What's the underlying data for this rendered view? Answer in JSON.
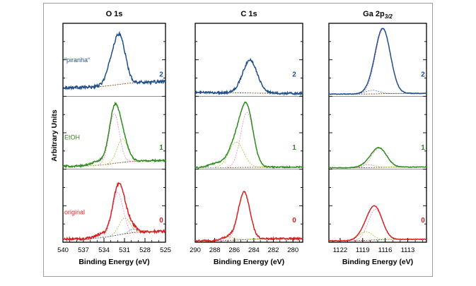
{
  "figure": {
    "ylabel": "Arbitrary Units",
    "xlabel": "Binding Energy (eV)",
    "colors": {
      "frame": "#9e9e9e",
      "axes": "#000000",
      "piranha": "#1f4e8c",
      "etoh": "#2e8b1e",
      "original": "#d82020",
      "background_line": "#8b4513"
    }
  },
  "chart_data": [
    {
      "type": "line",
      "title": "O 1s",
      "xlabel": "Binding Energy (eV)",
      "ylabel": "Arbitrary Units",
      "xlim": [
        540,
        525
      ],
      "ylim": [
        0,
        3
      ],
      "xticks": [
        540,
        537,
        534,
        531,
        528,
        525
      ],
      "xtick_labels": [
        "540",
        "537",
        "534",
        "531",
        "528",
        "525"
      ],
      "series": [
        {
          "name": "piranha",
          "index": "2",
          "label": "“piranha“",
          "color": "#1f4e8c",
          "offset": 2,
          "noise": 0.02,
          "baseline": {
            "left": 0.2,
            "right": 0.12,
            "step_center": 532.0,
            "step_width": 1.6
          },
          "peaks": [
            {
              "center": 531.6,
              "height": 0.58,
              "width": 0.8
            },
            {
              "center": 532.8,
              "height": 0.28,
              "width": 0.8
            }
          ],
          "components": [],
          "bg_color": "#8b4513"
        },
        {
          "name": "EtOH",
          "index": "1",
          "label": "EtOH",
          "color": "#2e8b1e",
          "offset": 1,
          "noise": 0.012,
          "baseline": {
            "left": 0.12,
            "right": 0.04,
            "step_center": 532.5,
            "step_width": 1.6
          },
          "peaks": [
            {
              "center": 532.5,
              "height": 0.68,
              "width": 0.75
            },
            {
              "center": 531.3,
              "height": 0.32,
              "width": 0.8
            },
            {
              "center": 534.5,
              "height": 0.06,
              "width": 1.2
            }
          ],
          "components": [
            {
              "center": 532.5,
              "height": 0.68,
              "width": 0.75,
              "color": "#e98cc8"
            },
            {
              "center": 531.3,
              "height": 0.32,
              "width": 0.8,
              "color": "#9acd32"
            }
          ],
          "bg_color": "#8b4513"
        },
        {
          "name": "original",
          "index": "0",
          "label": "original",
          "color": "#d82020",
          "offset": 0,
          "noise": 0.018,
          "baseline": {
            "left": 0.15,
            "right": 0.04,
            "step_center": 532.2,
            "step_width": 1.6
          },
          "peaks": [
            {
              "center": 532.0,
              "height": 0.58,
              "width": 0.8
            },
            {
              "center": 531.0,
              "height": 0.22,
              "width": 0.8
            },
            {
              "center": 534.4,
              "height": 0.05,
              "width": 1.0
            },
            {
              "center": 529.7,
              "height": 0.05,
              "width": 0.6
            }
          ],
          "components": [
            {
              "center": 532.0,
              "height": 0.58,
              "width": 0.8,
              "color": "#e98cc8"
            },
            {
              "center": 531.0,
              "height": 0.22,
              "width": 0.8,
              "color": "#9acd32"
            },
            {
              "center": 529.7,
              "height": 0.05,
              "width": 0.6,
              "color": "#4f7bd8"
            }
          ],
          "bg_color": "#8b4513"
        }
      ]
    },
    {
      "type": "line",
      "title": "C 1s",
      "xlabel": "Binding Energy (eV)",
      "ylabel": "",
      "xlim": [
        290,
        279
      ],
      "ylim": [
        0,
        3
      ],
      "xticks": [
        290,
        288,
        286,
        284,
        282,
        280
      ],
      "xtick_labels": [
        "290",
        "288",
        "286",
        "284",
        "282",
        "280"
      ],
      "series": [
        {
          "name": "piranha",
          "index": "2",
          "color": "#1f4e8c",
          "offset": 2,
          "noise": 0.015,
          "baseline": {
            "left": 0.04,
            "right": 0.05,
            "step_center": 284.5,
            "step_width": 1.0
          },
          "peaks": [
            {
              "center": 284.4,
              "height": 0.45,
              "width": 0.75
            }
          ],
          "components": [],
          "bg_color": "#8b4513"
        },
        {
          "name": "EtOH",
          "index": "1",
          "color": "#2e8b1e",
          "offset": 1,
          "noise": 0.01,
          "baseline": {
            "left": 0.03,
            "right": 0.02,
            "step_center": 285.0,
            "step_width": 1.2
          },
          "peaks": [
            {
              "center": 284.7,
              "height": 0.75,
              "width": 0.65
            },
            {
              "center": 285.8,
              "height": 0.35,
              "width": 0.75
            },
            {
              "center": 287.8,
              "height": 0.06,
              "width": 0.8
            }
          ],
          "components": [
            {
              "center": 284.7,
              "height": 0.75,
              "width": 0.65,
              "color": "#e98cc8"
            },
            {
              "center": 285.8,
              "height": 0.35,
              "width": 0.75,
              "color": "#9acd32"
            }
          ],
          "bg_color": "#8b4513"
        },
        {
          "name": "original",
          "index": "0",
          "color": "#d82020",
          "offset": 0,
          "noise": 0.012,
          "baseline": {
            "left": 0.05,
            "right": 0.02,
            "step_center": 285.0,
            "step_width": 1.0
          },
          "peaks": [
            {
              "center": 285.0,
              "height": 0.65,
              "width": 0.6
            },
            {
              "center": 286.6,
              "height": 0.05,
              "width": 0.6
            }
          ],
          "components": [
            {
              "center": 285.0,
              "height": 0.65,
              "width": 0.6,
              "color": "#e98cc8"
            },
            {
              "center": 286.6,
              "height": 0.05,
              "width": 0.6,
              "color": "#9acd32"
            }
          ],
          "bg_color": "#8b4513"
        }
      ]
    },
    {
      "type": "line",
      "title": "Ga 2p",
      "title_subscript": "3/2",
      "xlabel": "Binding Energy (eV)",
      "ylabel": "",
      "xlim": [
        1123.5,
        1110.5
      ],
      "ylim": [
        0,
        3
      ],
      "xticks": [
        1122,
        1119,
        1116,
        1113
      ],
      "xtick_labels": [
        "1122",
        "1119",
        "1116",
        "1113"
      ],
      "series": [
        {
          "name": "piranha",
          "index": "2",
          "color": "#1f4e8c",
          "offset": 2,
          "noise": 0.004,
          "baseline": {
            "left": 0.04,
            "right": 0.03,
            "step_center": 1116.5,
            "step_width": 1.0
          },
          "peaks": [
            {
              "center": 1116.3,
              "height": 0.88,
              "width": 1.0
            },
            {
              "center": 1117.7,
              "height": 0.05,
              "width": 0.9
            }
          ],
          "components": [
            {
              "center": 1116.3,
              "height": 0.88,
              "width": 1.0,
              "color": "#e98cc8"
            },
            {
              "center": 1117.7,
              "height": 0.05,
              "width": 0.9,
              "color": "#4f7bd8"
            }
          ],
          "bg_color": "#8b4513"
        },
        {
          "name": "EtOH",
          "index": "1",
          "color": "#2e8b1e",
          "offset": 1,
          "noise": 0.004,
          "baseline": {
            "left": 0.03,
            "right": 0.02,
            "step_center": 1117.0,
            "step_width": 1.0
          },
          "peaks": [
            {
              "center": 1116.8,
              "height": 0.26,
              "width": 1.0
            },
            {
              "center": 1118.3,
              "height": 0.04,
              "width": 0.9
            }
          ],
          "components": [
            {
              "center": 1116.8,
              "height": 0.26,
              "width": 1.0,
              "color": "#e98cc8"
            },
            {
              "center": 1118.3,
              "height": 0.04,
              "width": 0.9,
              "color": "#9acd32"
            }
          ],
          "bg_color": "#8b4513"
        },
        {
          "name": "original",
          "index": "0",
          "color": "#d82020",
          "offset": 0,
          "noise": 0.004,
          "baseline": {
            "left": 0.04,
            "right": 0.02,
            "step_center": 1117.5,
            "step_width": 1.0
          },
          "peaks": [
            {
              "center": 1117.3,
              "height": 0.42,
              "width": 0.95
            },
            {
              "center": 1118.6,
              "height": 0.12,
              "width": 0.9
            }
          ],
          "components": [
            {
              "center": 1117.3,
              "height": 0.42,
              "width": 0.95,
              "color": "#e98cc8"
            },
            {
              "center": 1118.6,
              "height": 0.12,
              "width": 0.9,
              "color": "#9acd32"
            }
          ],
          "bg_color": "#8b4513"
        }
      ]
    }
  ]
}
